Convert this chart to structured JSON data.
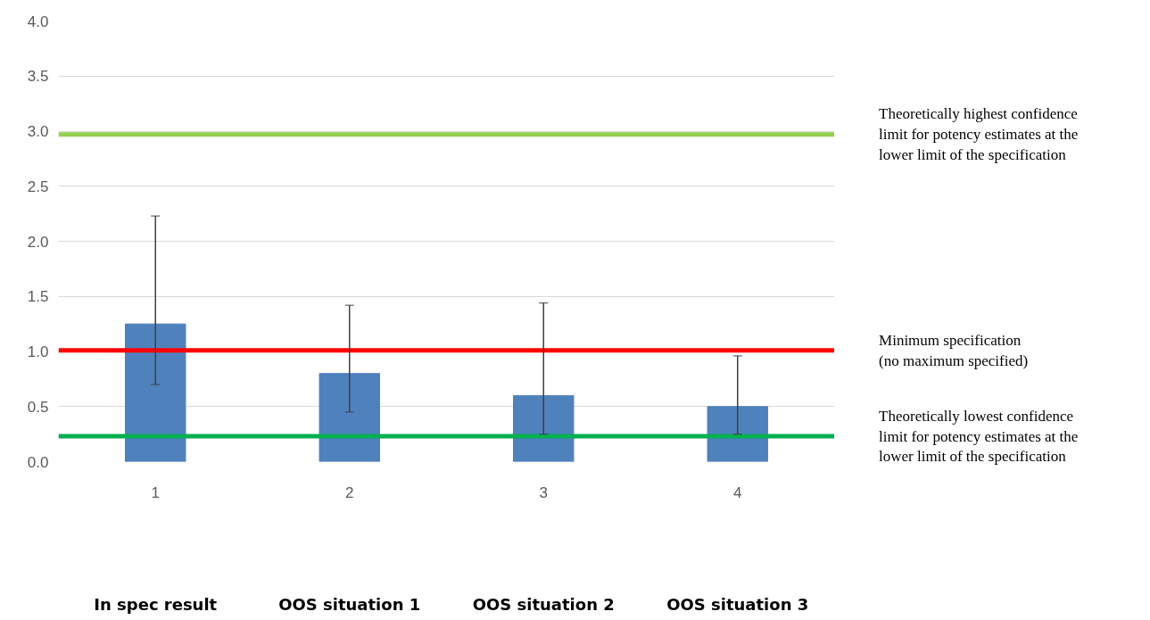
{
  "chart_data": {
    "type": "bar",
    "categories": [
      "1",
      "2",
      "3",
      "4"
    ],
    "values": [
      1.25,
      0.8,
      0.6,
      0.5
    ],
    "color": "#4f81bd",
    "errors": [
      [
        0.7,
        2.23
      ],
      [
        0.45,
        1.42
      ],
      [
        0.25,
        1.44
      ],
      [
        0.25,
        0.96
      ]
    ],
    "ylim": [
      0,
      4
    ],
    "yticks": [
      {
        "value": 0,
        "label": "0.0"
      },
      {
        "value": 0.5,
        "label": "0.5"
      },
      {
        "value": 1,
        "label": "1.0"
      },
      {
        "value": 1.5,
        "label": "1.5"
      },
      {
        "value": 2,
        "label": "2.0"
      },
      {
        "value": 2.5,
        "label": "2.5"
      },
      {
        "value": 3,
        "label": "3.0"
      },
      {
        "value": 3.5,
        "label": "3.5"
      },
      {
        "value": 4,
        "label": "4.0"
      }
    ],
    "grid": "y",
    "ref_lines": [
      {
        "axis": "y",
        "value": 2.97,
        "label": "Theoretically highest confidence\nlimit for potency estimates at the\nlower limit of the specification",
        "color": "#92d050"
      },
      {
        "axis": "y",
        "value": 1.01,
        "label": "Minimum specification\n(no maximum specified)",
        "color": "#ff0000"
      },
      {
        "axis": "y",
        "value": 0.23,
        "label": "Theoretically lowest confidence\nlimit for potency estimates at the\nlower limit of the specification",
        "color": "#00b050"
      }
    ],
    "annotations": [
      "In spec result",
      "OOS situation 1",
      "OOS situation 2",
      "OOS situation 3"
    ]
  }
}
